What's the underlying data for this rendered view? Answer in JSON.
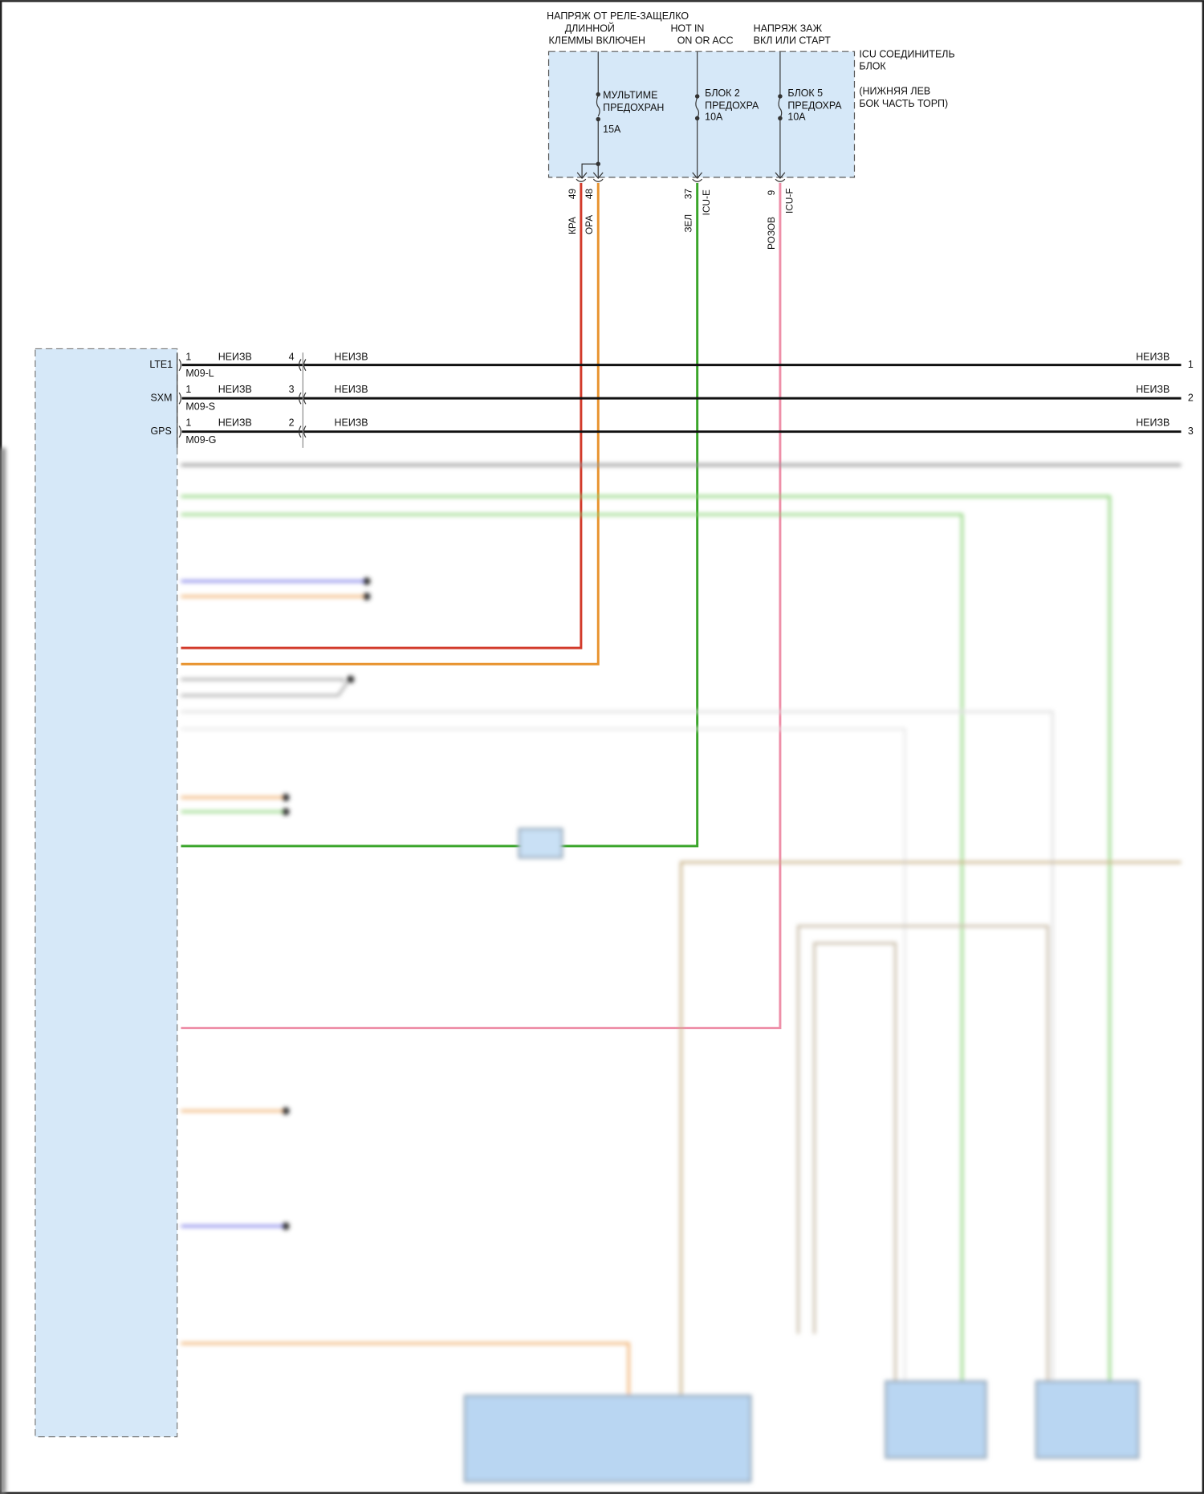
{
  "header": {
    "col1": [
      "НАПРЯЖ ОТ РЕЛЕ-ЗАЩЕЛКО",
      "ДЛИННОЙ",
      "КЛЕММЫ ВКЛЮЧЕН"
    ],
    "col2": [
      "HOT IN",
      "ON OR ACC"
    ],
    "col3": [
      "НАПРЯЖ ЗАЖ",
      "ВКЛ ИЛИ СТАРТ"
    ]
  },
  "icu_block": {
    "title": [
      "ICU СОЕДИНИТЕЛЬ",
      "БЛОК"
    ],
    "location": [
      "(НИЖНЯЯ ЛЕВ",
      "БОК ЧАСТЬ ТОРП)"
    ],
    "fuses": [
      {
        "name": [
          "МУЛЬТИМЕ",
          "ПРЕДОХРАН"
        ],
        "rating": "15A"
      },
      {
        "name": [
          "БЛОК 2",
          "ПРЕДОХРА"
        ],
        "rating": "10A"
      },
      {
        "name": [
          "БЛОК 5",
          "ПРЕДОХРА"
        ],
        "rating": "10A"
      }
    ]
  },
  "wires": [
    {
      "pin": "49",
      "color_label": "КРА",
      "connector": "",
      "color": "#d23a2a"
    },
    {
      "pin": "48",
      "color_label": "ОРА",
      "connector": "",
      "color": "#e8932e"
    },
    {
      "pin": "37",
      "color_label": "ЗЕЛ",
      "connector": "ICU-E",
      "color": "#3aa52a"
    },
    {
      "pin": "9",
      "color_label": "РОЗОВ",
      "connector": "ICU-F",
      "color": "#ee8fa8"
    }
  ],
  "antenna_rows": [
    {
      "label": "LTE1",
      "pin": "1",
      "wire": "НЕИЗВ",
      "connector": "M09-L",
      "inline_pin": "4",
      "wire2": "НЕИЗВ",
      "wire_right": "НЕИЗВ",
      "end_pin": "1"
    },
    {
      "label": "SXM",
      "pin": "1",
      "wire": "НЕИЗВ",
      "connector": "M09-S",
      "inline_pin": "3",
      "wire2": "НЕИЗВ",
      "wire_right": "НЕИЗВ",
      "end_pin": "2"
    },
    {
      "label": "GPS",
      "pin": "1",
      "wire": "НЕИЗВ",
      "connector": "M09-G",
      "inline_pin": "2",
      "wire2": "НЕИЗВ",
      "wire_right": "НЕИЗВ",
      "end_pin": "3"
    }
  ],
  "colors": {
    "module_fill": "#d6e8f8",
    "frame": "#222222"
  }
}
